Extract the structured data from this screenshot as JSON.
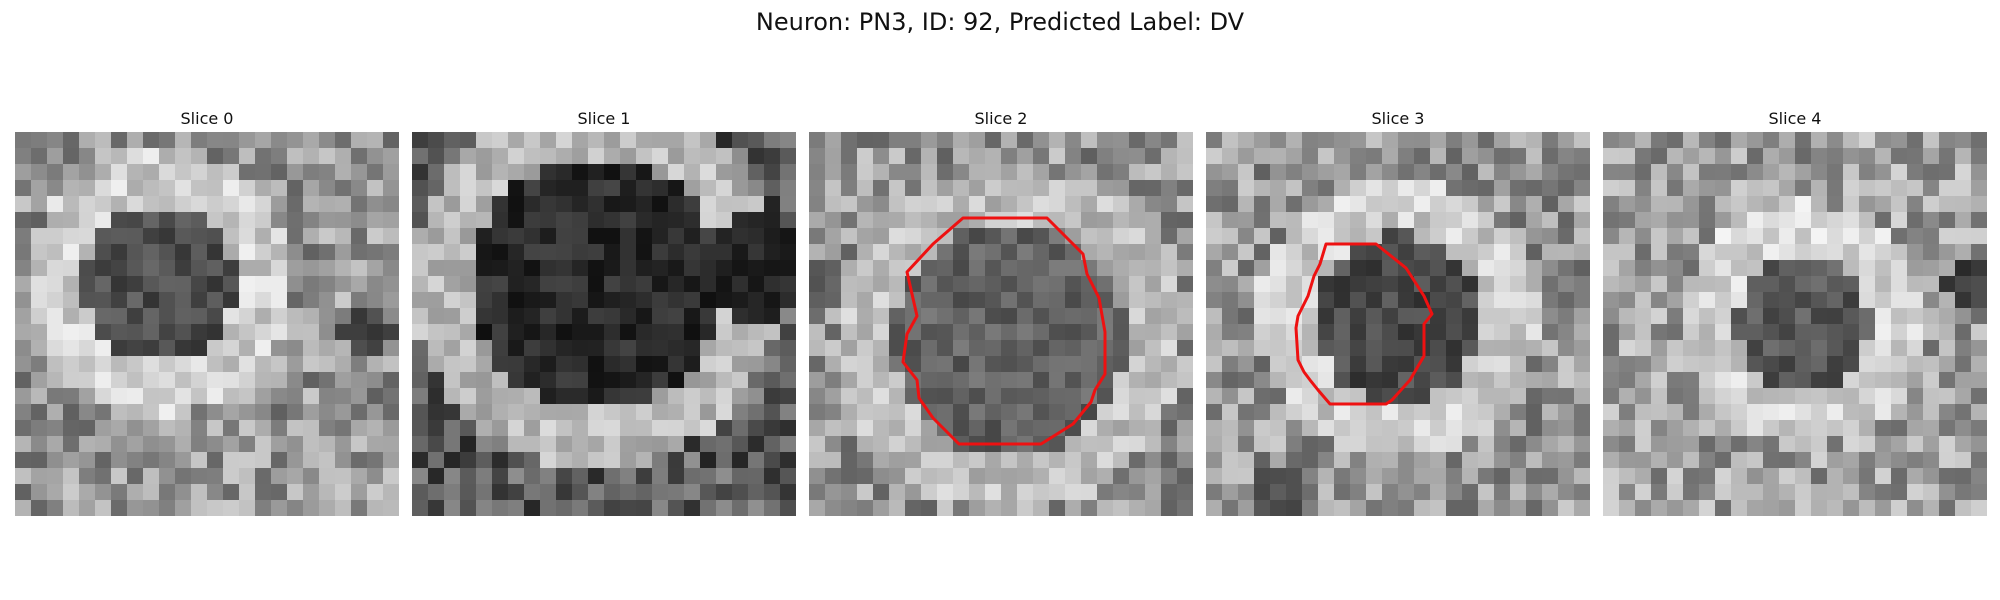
{
  "figure": {
    "title": "Neuron: PN3, ID: 92, Predicted Label: DV",
    "overlay_color": "#ee1111"
  },
  "panels": [
    {
      "title": "Slice 0",
      "has_contour": false
    },
    {
      "title": "Slice 1",
      "has_contour": false
    },
    {
      "title": "Slice 2",
      "has_contour": true
    },
    {
      "title": "Slice 3",
      "has_contour": true
    },
    {
      "title": "Slice 4",
      "has_contour": false
    }
  ]
}
